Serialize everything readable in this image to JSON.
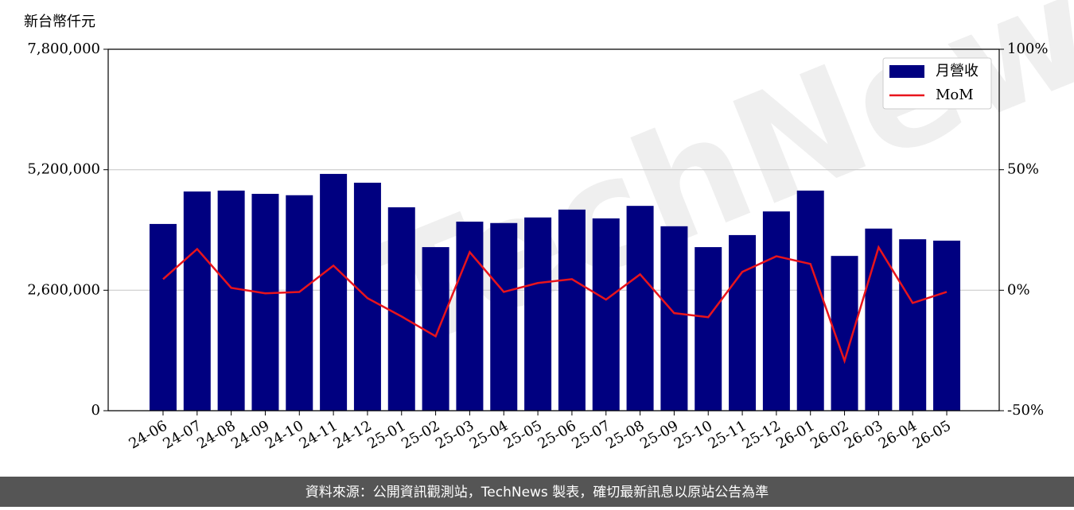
{
  "chart_data": {
    "type": "bar",
    "y_label": "新台幣仟元",
    "watermark": "TechNews",
    "footer": "資料來源：公開資訊觀測站，TechNews 製表，確切最新訊息以原站公告為準",
    "categories": [
      "24-06",
      "24-07",
      "24-08",
      "24-09",
      "24-10",
      "24-11",
      "24-12",
      "25-01",
      "25-02",
      "25-03",
      "25-04",
      "25-05",
      "25-06",
      "25-07",
      "25-08",
      "25-09",
      "25-10",
      "25-11",
      "25-12",
      "26-01",
      "26-02",
      "26-03",
      "26-04",
      "26-05"
    ],
    "series": [
      {
        "name": "月營收",
        "type": "bar",
        "color": "#000080",
        "values": [
          4030000,
          4730000,
          4750000,
          4680000,
          4650000,
          5110000,
          4920000,
          4390000,
          3530000,
          4080000,
          4050000,
          4170000,
          4340000,
          4150000,
          4420000,
          3980000,
          3530000,
          3790000,
          4300000,
          4750000,
          3340000,
          3930000,
          3700000,
          3670000
        ]
      },
      {
        "name": "MoM",
        "type": "line",
        "axis": "y2",
        "color": "#e8141c",
        "values": [
          4.6,
          17.1,
          1.0,
          -1.3,
          -0.7,
          10.2,
          -3.3,
          -10.9,
          -19.1,
          15.8,
          -0.7,
          3.0,
          4.6,
          -3.9,
          6.6,
          -9.5,
          -11.2,
          7.6,
          14.1,
          10.9,
          -29.3,
          17.8,
          -5.3,
          -0.7
        ]
      }
    ],
    "ylim": [
      0,
      7800000
    ],
    "yticks": [
      0,
      {
        "value": 2600000,
        "label": "2,600,000"
      },
      {
        "value": 5200000,
        "label": "5,200,000"
      },
      {
        "value": 7800000,
        "label": "7,800,000"
      }
    ],
    "y2lim": [
      -50,
      100
    ],
    "y2ticks": [
      {
        "value": -50,
        "label": "-50%"
      },
      {
        "value": 0,
        "label": "0%"
      },
      {
        "value": 50,
        "label": "50%"
      },
      {
        "value": 100,
        "label": "100%"
      }
    ],
    "grid": true,
    "legend": "upper right"
  }
}
